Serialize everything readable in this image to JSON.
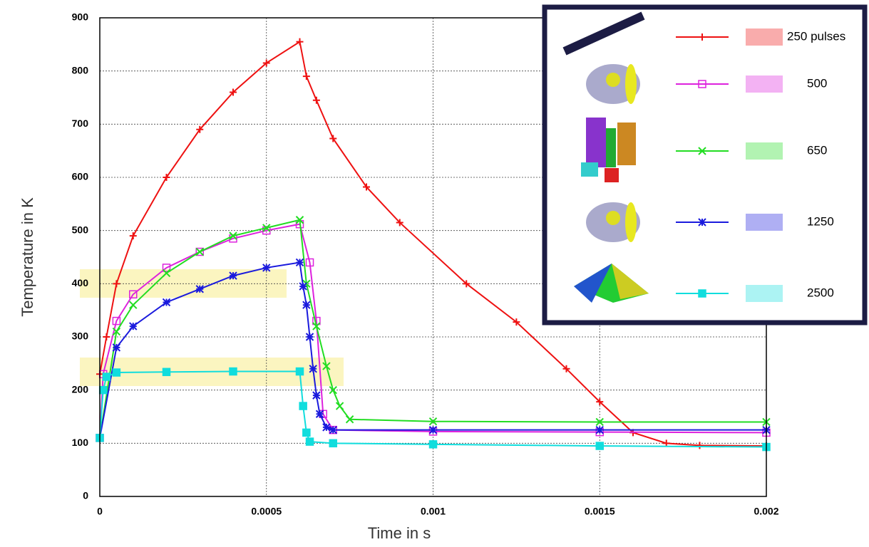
{
  "chart_data": {
    "type": "line",
    "y_label": "Temperature in K",
    "x_label": "Time in s",
    "xlim": [
      0,
      0.002
    ],
    "xticks": [
      0,
      0.0005,
      0.001,
      0.0015,
      0.002
    ],
    "ylim": [
      0,
      900
    ],
    "yticks": [
      0,
      100,
      200,
      300,
      400,
      500,
      600,
      700,
      800,
      900
    ],
    "grid": true,
    "legend": "upper right",
    "series": [
      {
        "name": "250 pulses",
        "color": "#ee1111",
        "marker": "plus",
        "x": [
          0,
          2e-05,
          5e-05,
          0.0001,
          0.0002,
          0.0003,
          0.0004,
          0.0005,
          0.0006,
          0.00062,
          0.00065,
          0.0007,
          0.0008,
          0.0009,
          0.0011,
          0.00125,
          0.0014,
          0.0015,
          0.0016,
          0.0017,
          0.0018,
          0.002
        ],
        "values": [
          230,
          300,
          400,
          490,
          600,
          690,
          760,
          815,
          855,
          790,
          745,
          673,
          582,
          515,
          400,
          328,
          240,
          178,
          120,
          100,
          96,
          95
        ]
      },
      {
        "name": "500",
        "color": "#dd22dd",
        "marker": "square-open",
        "x": [
          0,
          1e-05,
          5e-05,
          0.0001,
          0.0002,
          0.0003,
          0.0004,
          0.0005,
          0.0006,
          0.00063,
          0.00065,
          0.00067,
          0.0007,
          0.001,
          0.0015,
          0.002
        ],
        "values": [
          110,
          230,
          330,
          380,
          430,
          460,
          485,
          500,
          512,
          440,
          330,
          155,
          125,
          122,
          121,
          120
        ]
      },
      {
        "name": "650",
        "color": "#22dd22",
        "marker": "x",
        "x": [
          0,
          5e-05,
          0.0001,
          0.0002,
          0.0003,
          0.0004,
          0.0005,
          0.0006,
          0.00062,
          0.00065,
          0.00068,
          0.0007,
          0.00072,
          0.00075,
          0.001,
          0.0015,
          0.002
        ],
        "values": [
          110,
          310,
          360,
          420,
          460,
          490,
          505,
          520,
          400,
          320,
          245,
          200,
          170,
          145,
          141,
          140,
          140
        ]
      },
      {
        "name": "1250",
        "color": "#1a1add",
        "marker": "star",
        "x": [
          0,
          5e-05,
          0.0001,
          0.0002,
          0.0003,
          0.0004,
          0.0005,
          0.0006,
          0.00061,
          0.00062,
          0.00063,
          0.00064,
          0.00065,
          0.00066,
          0.00068,
          0.0007,
          0.001,
          0.0015,
          0.002
        ],
        "values": [
          110,
          280,
          320,
          365,
          390,
          415,
          430,
          440,
          395,
          360,
          300,
          240,
          190,
          155,
          130,
          125,
          125,
          125,
          125
        ]
      },
      {
        "name": "2500",
        "color": "#11dddd",
        "marker": "square",
        "x": [
          0,
          1e-05,
          2e-05,
          5e-05,
          0.0002,
          0.0004,
          0.0006,
          0.00061,
          0.00062,
          0.00063,
          0.0007,
          0.001,
          0.0015,
          0.002
        ],
        "values": [
          110,
          200,
          225,
          233,
          234,
          235,
          235,
          170,
          120,
          103,
          100,
          98,
          95,
          93
        ]
      }
    ]
  }
}
